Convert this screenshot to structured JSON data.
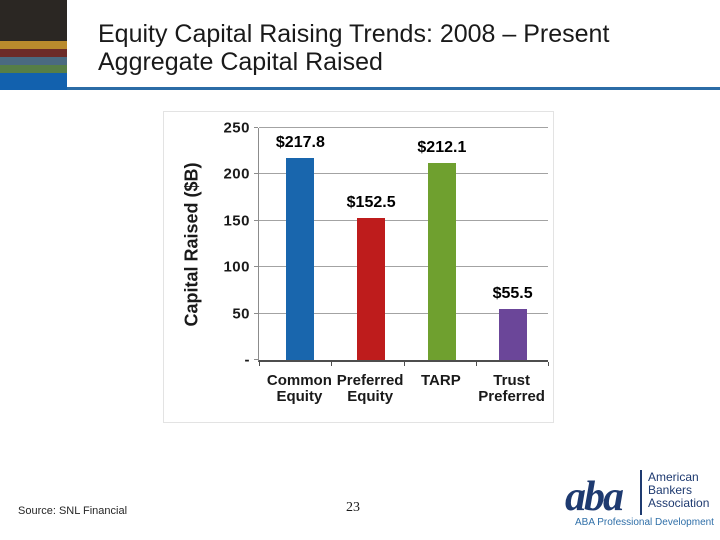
{
  "slide": {
    "title_line1": "Equity Capital Raising Trends: 2008 – Present",
    "title_line2": "Aggregate Capital Raised"
  },
  "chart_data": {
    "type": "bar",
    "title": "",
    "xlabel": "",
    "ylabel": "Capital Raised ($B)",
    "categories": [
      "Common Equity",
      "Preferred Equity",
      "TARP",
      "Trust Preferred"
    ],
    "category_labels": [
      "Common\nEquity",
      "Preferred\nEquity",
      "TARP",
      "Trust\nPreferred"
    ],
    "values": [
      217.8,
      152.5,
      212.1,
      55.5
    ],
    "data_labels": [
      "$217.8",
      "$152.5",
      "$212.1",
      "$55.5"
    ],
    "bar_colors": [
      "#1966AD",
      "#BE1C1C",
      "#6FA02F",
      "#6B4699"
    ],
    "ylim": [
      0,
      250
    ],
    "ytick_step": 50,
    "ytick_labels": [
      "-",
      "50",
      "100",
      "150",
      "200",
      "250"
    ],
    "grid": true,
    "legend": false
  },
  "footer": {
    "source": "Source: SNL Financial",
    "page_number": "23"
  },
  "logo": {
    "monogram": "aba",
    "org_lines": [
      "American",
      "Bankers",
      "Association"
    ],
    "tagline": "ABA Professional Development",
    "navy": "#1E3A70",
    "tagline_blue": "#2F6FA8"
  },
  "theme": {
    "accent_rule": "#2B6CA6"
  }
}
